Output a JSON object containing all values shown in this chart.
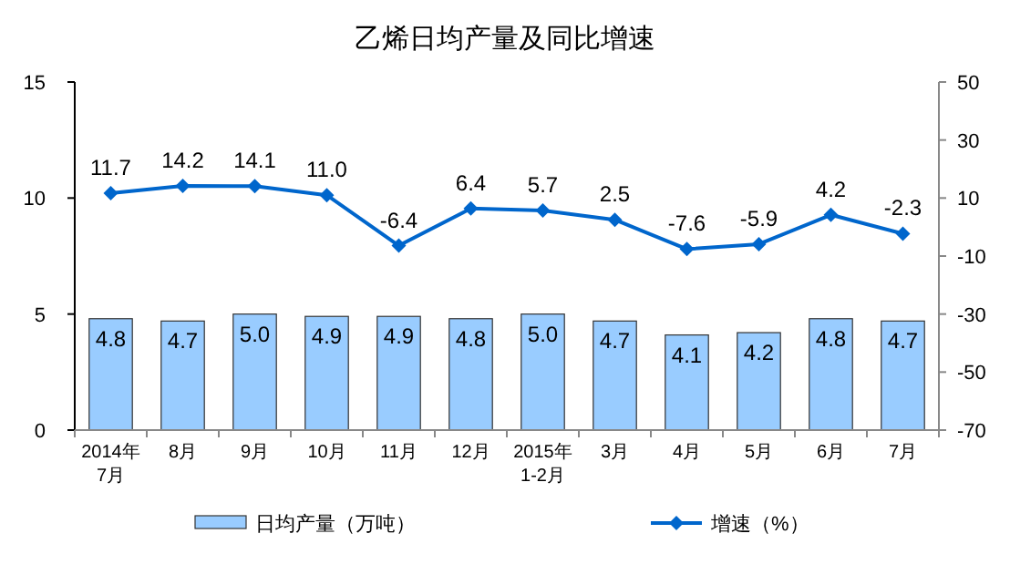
{
  "chart_data": {
    "type": "bar",
    "title": "乙烯日均产量及同比增速",
    "categories": [
      "2014年\n7月",
      "8月",
      "9月",
      "10月",
      "11月",
      "12月",
      "2015年\n1-2月",
      "3月",
      "4月",
      "5月",
      "6月",
      "7月"
    ],
    "series": [
      {
        "name": "日均产量（万吨）",
        "color": "#99ccff",
        "values": [
          4.8,
          4.7,
          5.0,
          4.9,
          4.9,
          4.8,
          5.0,
          4.7,
          4.1,
          4.2,
          4.8,
          4.7
        ],
        "value_labels": [
          "4.8",
          "4.7",
          "5.0",
          "4.9",
          "4.9",
          "4.8",
          "5.0",
          "4.7",
          "4.1",
          "4.2",
          "4.8",
          "4.7"
        ]
      },
      {
        "name": "增速（%）",
        "type": "line",
        "axis": "y2",
        "color": "#0066cc",
        "marker": "diamond",
        "values": [
          11.7,
          14.2,
          14.1,
          11.0,
          -6.4,
          6.4,
          5.7,
          2.5,
          -7.6,
          -5.9,
          4.2,
          -2.3
        ],
        "value_labels": [
          "11.7",
          "14.2",
          "14.1",
          "11.0",
          "-6.4",
          "6.4",
          "5.7",
          "2.5",
          "-7.6",
          "-5.9",
          "4.2",
          "-2.3"
        ]
      }
    ],
    "ylim": [
      0,
      15
    ],
    "yticks": [
      0,
      5,
      10,
      15
    ],
    "y2lim": [
      -70,
      50
    ],
    "y2ticks": [
      -70,
      -50,
      -30,
      -10,
      10,
      30,
      50
    ],
    "legend": "bottom",
    "grid": false
  }
}
